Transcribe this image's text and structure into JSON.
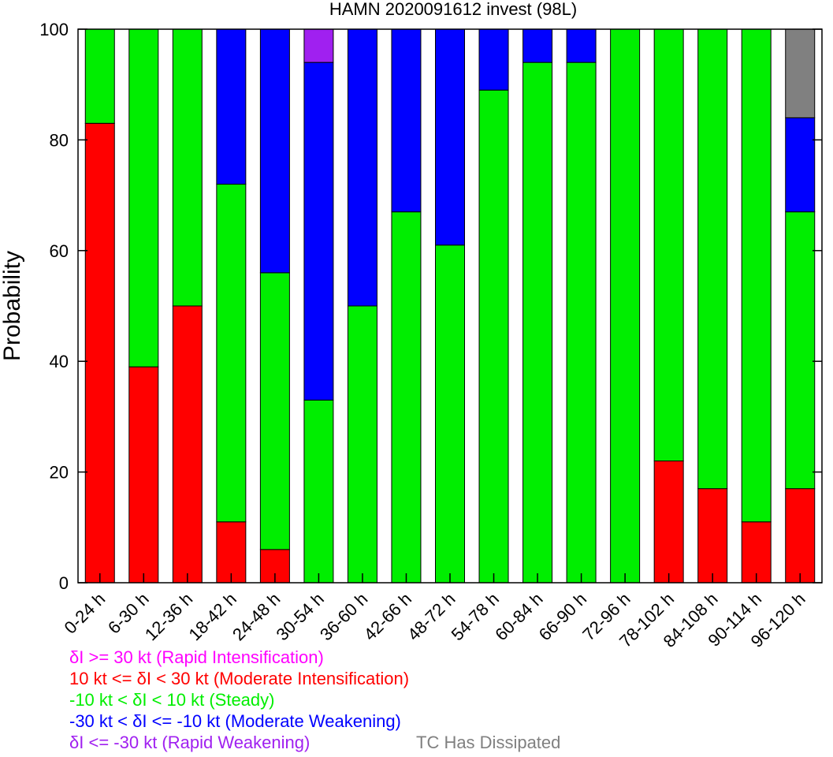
{
  "chart_data": {
    "type": "bar",
    "stacked": true,
    "title": "HAMN 2020091612 invest (98L)",
    "ylabel": "Probability",
    "xlabel": "",
    "ylim": [
      0,
      100
    ],
    "yticks": [
      0,
      20,
      40,
      60,
      80,
      100
    ],
    "categories": [
      "0-24 h",
      "6-30 h",
      "12-36 h",
      "18-42 h",
      "24-48 h",
      "30-54 h",
      "36-60 h",
      "42-66 h",
      "48-72 h",
      "54-78 h",
      "60-84 h",
      "66-90 h",
      "72-96 h",
      "78-102 h",
      "84-108 h",
      "90-114 h",
      "96-120 h"
    ],
    "series": [
      {
        "key": "moderate-intensification",
        "color": "#ff0000",
        "values": [
          83,
          39,
          50,
          11,
          6,
          0,
          0,
          0,
          0,
          0,
          0,
          0,
          0,
          22,
          17,
          11,
          17
        ]
      },
      {
        "key": "steady",
        "color": "#00ee00",
        "values": [
          17,
          61,
          50,
          61,
          50,
          33,
          50,
          67,
          61,
          89,
          94,
          94,
          100,
          78,
          83,
          89,
          50
        ]
      },
      {
        "key": "moderate-weakening",
        "color": "#0000ff",
        "values": [
          0,
          0,
          0,
          28,
          44,
          61,
          50,
          33,
          39,
          11,
          6,
          6,
          0,
          0,
          0,
          0,
          17
        ]
      },
      {
        "key": "rapid-weakening",
        "color": "#a020f0",
        "values": [
          0,
          0,
          0,
          0,
          0,
          6,
          0,
          0,
          0,
          0,
          0,
          0,
          0,
          0,
          0,
          0,
          0
        ]
      },
      {
        "key": "dissipated",
        "color": "#808080",
        "values": [
          0,
          0,
          0,
          0,
          0,
          0,
          0,
          0,
          0,
          0,
          0,
          0,
          0,
          0,
          0,
          0,
          16
        ]
      }
    ],
    "grid": false
  },
  "legend": {
    "rapid_intensification": {
      "text": "δI >= 30 kt (Rapid Intensification)",
      "color": "#ff00ff"
    },
    "moderate_intensification": {
      "text": "10 kt <= δI < 30 kt (Moderate Intensification)",
      "color": "#ff0000"
    },
    "steady": {
      "text": "-10 kt < δI < 10 kt (Steady)",
      "color": "#00ee00"
    },
    "moderate_weakening": {
      "text": "-30 kt < δI <= -10 kt (Moderate Weakening)",
      "color": "#0000ff"
    },
    "rapid_weakening": {
      "text": "δI <= -30 kt (Rapid Weakening)",
      "color": "#a020f0"
    },
    "dissipated": {
      "text": "TC Has Dissipated",
      "color": "#808080"
    }
  }
}
